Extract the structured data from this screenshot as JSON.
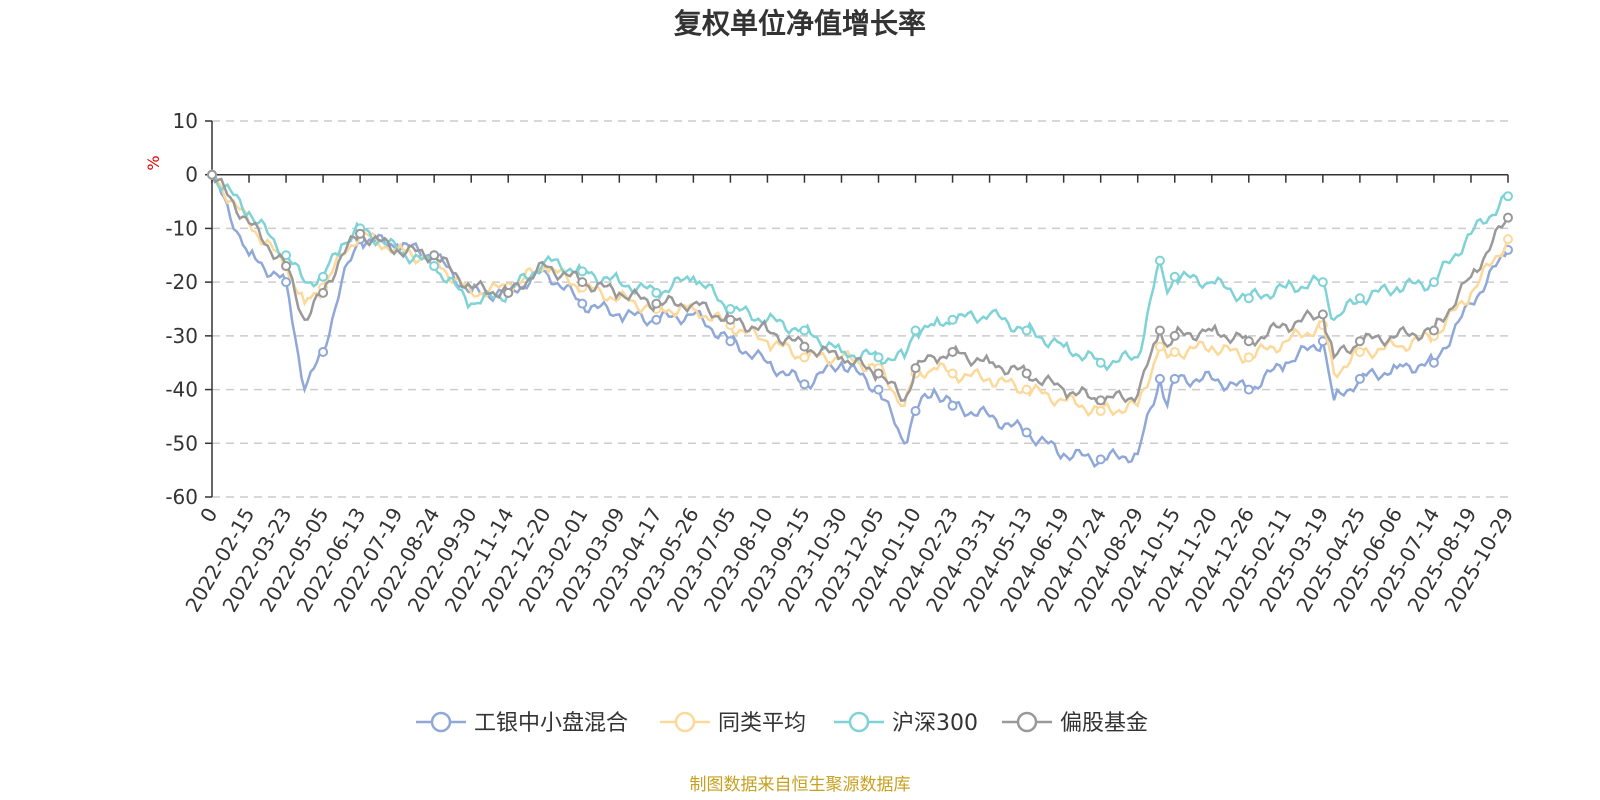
{
  "chart_data": {
    "type": "line",
    "title": "复权单位净值增长率",
    "ylabel": "%",
    "ylim": [
      -60,
      10
    ],
    "yticks": [
      10,
      0,
      -10,
      -20,
      -30,
      -40,
      -50,
      -60
    ],
    "x_tick_labels": [
      "0",
      "2022-02-15",
      "2022-03-23",
      "2022-05-05",
      "2022-06-13",
      "2022-07-19",
      "2022-08-24",
      "2022-09-30",
      "2022-11-14",
      "2022-12-20",
      "2023-02-01",
      "2023-03-09",
      "2023-04-17",
      "2023-05-26",
      "2023-07-05",
      "2023-08-10",
      "2023-09-15",
      "2023-10-30",
      "2023-12-05",
      "2024-01-10",
      "2024-02-23",
      "2024-03-31",
      "2024-05-13",
      "2024-06-19",
      "2024-07-24",
      "2024-08-29",
      "2024-10-15",
      "2024-11-20",
      "2024-12-26",
      "2025-02-11",
      "2025-03-19",
      "2025-04-25",
      "2025-06-06",
      "2025-07-14",
      "2025-08-19",
      "2025-10-29"
    ],
    "x_points": [
      0,
      1,
      2,
      2.5,
      3,
      3.5,
      4,
      5,
      6,
      7,
      8,
      9,
      10,
      11,
      12,
      13,
      14,
      15,
      16,
      17,
      18,
      18.7,
      19,
      19.5,
      20,
      21,
      22,
      23,
      24,
      25,
      25.6,
      25.8,
      26,
      27,
      28,
      29,
      30,
      30.3,
      31,
      32,
      33,
      34,
      35
    ],
    "series": [
      {
        "name": "工银中小盘混合",
        "color": "#8fa8d8",
        "values": [
          0,
          -15,
          -20,
          -40,
          -33,
          -20,
          -12,
          -13,
          -15,
          -22,
          -22,
          -18,
          -24,
          -26,
          -27,
          -26,
          -31,
          -35,
          -39,
          -35,
          -40,
          -50,
          -44,
          -40,
          -43,
          -45,
          -48,
          -52,
          -53,
          -52,
          -38,
          -43,
          -38,
          -38,
          -40,
          -35,
          -31,
          -42,
          -38,
          -36,
          -35,
          -24,
          -14
        ]
      },
      {
        "name": "同类平均",
        "color": "#fcd99a",
        "values": [
          0,
          -9,
          -17,
          -24,
          -21,
          -15,
          -11,
          -14,
          -16,
          -22,
          -21,
          -17,
          -21,
          -23,
          -25,
          -25,
          -28,
          -31,
          -34,
          -34,
          -36,
          -43,
          -37,
          -36,
          -37,
          -38,
          -40,
          -42,
          -44,
          -43,
          -32,
          -34,
          -33,
          -32,
          -34,
          -31,
          -28,
          -37,
          -33,
          -32,
          -30,
          -22,
          -12
        ]
      },
      {
        "name": "沪深300",
        "color": "#7fd2d6",
        "values": [
          0,
          -7,
          -15,
          -20,
          -19,
          -13,
          -10,
          -14,
          -17,
          -24,
          -22,
          -16,
          -18,
          -20,
          -22,
          -19,
          -25,
          -27,
          -29,
          -33,
          -34,
          -34,
          -29,
          -28,
          -27,
          -26,
          -29,
          -32,
          -35,
          -34,
          -16,
          -22,
          -19,
          -20,
          -23,
          -21,
          -20,
          -27,
          -23,
          -21,
          -20,
          -11,
          -4
        ]
      },
      {
        "name": "偏股基金",
        "color": "#999999",
        "values": [
          0,
          -9,
          -17,
          -27,
          -22,
          -15,
          -11,
          -14,
          -15,
          -21,
          -22,
          -17,
          -20,
          -22,
          -24,
          -24,
          -27,
          -29,
          -32,
          -34,
          -37,
          -42,
          -36,
          -34,
          -33,
          -35,
          -37,
          -40,
          -42,
          -41,
          -29,
          -32,
          -30,
          -29,
          -31,
          -28,
          -26,
          -34,
          -31,
          -30,
          -29,
          -19,
          -8
        ]
      }
    ]
  },
  "source_text": "制图数据来自恒生聚源数据库"
}
